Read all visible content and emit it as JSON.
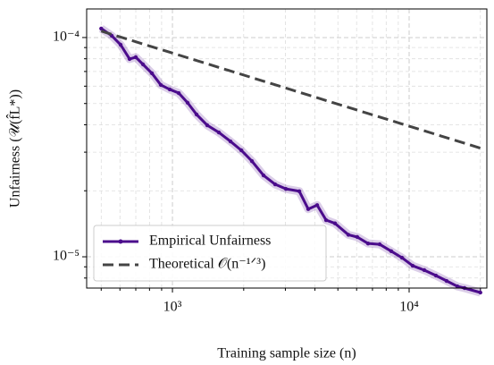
{
  "chart_data": {
    "type": "line",
    "xlabel": "Training sample size (n)",
    "ylabel": "Unfairness (𝒰(f̂L*))",
    "xscale": "log",
    "yscale": "log",
    "xlim": [
      434,
      21300
    ],
    "ylim": [
      7.2e-06,
      0.000135
    ],
    "xticks": [
      {
        "value": 1000,
        "label": "10³"
      },
      {
        "value": 10000,
        "label": "10⁴"
      }
    ],
    "yticks": [
      {
        "value": 1e-05,
        "label": "10⁻⁵"
      },
      {
        "value": 0.0001,
        "label": "10⁻⁴"
      }
    ],
    "xminorticks": [
      500,
      600,
      700,
      800,
      900,
      2000,
      3000,
      4000,
      5000,
      6000,
      7000,
      8000,
      9000,
      20000
    ],
    "yminorticks": [
      8e-06,
      9e-06,
      2e-05,
      3e-05,
      4e-05,
      5e-05,
      6e-05,
      7e-05,
      8e-05,
      9e-05
    ],
    "grid": true,
    "legend": "lower left",
    "series": [
      {
        "name": "Empirical Unfairness",
        "color": "#4b0c8c",
        "style": "solid",
        "marker": true,
        "band": true,
        "x": [
          500,
          554,
          604,
          659,
          700,
          751,
          819,
          893,
          974,
          1063,
          1159,
          1264,
          1403,
          1571,
          1759,
          1953,
          2167,
          2426,
          2716,
          3015,
          3435,
          3747,
          4087,
          4458,
          4862,
          5538,
          6041,
          6706,
          7506,
          8405,
          9328,
          10354,
          11590,
          12980,
          14400,
          15990,
          17140,
          20000
        ],
        "values": [
          0.0001099,
          0.0001019,
          9.27e-05,
          7.98e-05,
          8.13e-05,
          7.54e-05,
          6.87e-05,
          6.08e-05,
          5.8e-05,
          5.58e-05,
          5.04e-05,
          4.46e-05,
          3.98e-05,
          3.69e-05,
          3.36e-05,
          3.06e-05,
          2.73e-05,
          2.35e-05,
          2.14e-05,
          2.04e-05,
          1.99e-05,
          1.65e-05,
          1.72e-05,
          1.47e-05,
          1.42e-05,
          1.26e-05,
          1.23e-05,
          1.15e-05,
          1.14e-05,
          1.06e-05,
          9.9e-06,
          9.1e-06,
          8.69e-06,
          8.21e-06,
          7.76e-06,
          7.33e-06,
          7.2e-06,
          6.87e-06
        ]
      },
      {
        "name": "Theoretical 𝒪(n⁻¹ᐟ³)",
        "color": "#444444",
        "style": "dashed",
        "marker": false,
        "band": false,
        "x": [
          500,
          20000
        ],
        "values": [
          0.000107,
          3.13e-05
        ]
      }
    ]
  }
}
